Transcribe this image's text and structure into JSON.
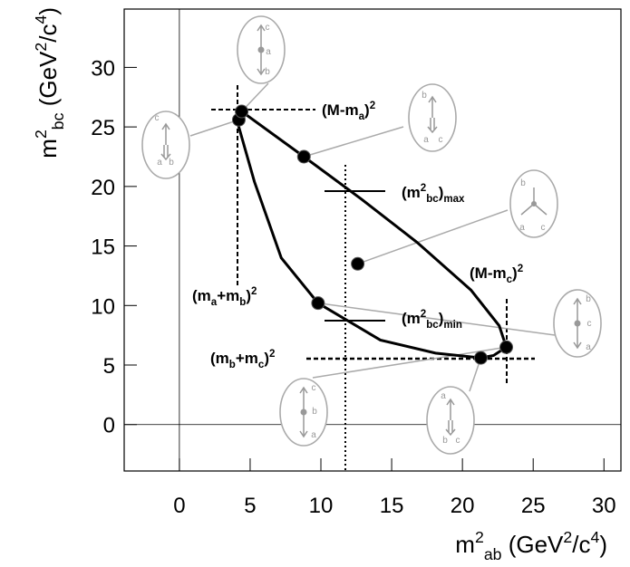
{
  "chart_data": {
    "type": "scatter",
    "x_label": [
      "m",
      "2",
      "ab",
      " (GeV",
      "2",
      "/c",
      "4",
      ")"
    ],
    "y_label": [
      "m",
      "2",
      "bc",
      " (GeV",
      "2",
      "/c",
      "4",
      ")"
    ],
    "xlim": [
      -3.9,
      31.2
    ],
    "ylim": [
      -3.9,
      34.9
    ],
    "xticks": [
      0,
      5,
      10,
      15,
      20,
      25,
      30
    ],
    "yticks": [
      0,
      5,
      10,
      15,
      20,
      25,
      30
    ],
    "color": "#000000",
    "x": [
      4.2,
      4.4,
      8.8,
      12.6,
      9.8,
      21.3,
      23.1
    ],
    "values": [
      25.6,
      26.3,
      22.5,
      13.5,
      10.2,
      5.6,
      6.5
    ],
    "boundary": {
      "x": [
        4.4,
        8.8,
        12.9,
        16.8,
        20.6,
        22.6,
        23.1,
        22.2,
        21.3,
        18.1,
        14.2,
        9.8,
        7.2,
        5.3,
        4.2,
        4.1,
        4.4
      ],
      "values": [
        26.3,
        22.5,
        18.9,
        15.3,
        11.3,
        8.3,
        6.5,
        5.8,
        5.6,
        6.0,
        7.1,
        10.2,
        14.0,
        20.4,
        25.0,
        25.7,
        26.3
      ]
    },
    "annotations": [
      [
        "(M-m",
        "a",
        ")",
        "2"
      ],
      [
        "(m",
        "2",
        "bc",
        ")",
        "max"
      ],
      [
        "(M-m",
        "c",
        ")",
        "2"
      ],
      [
        "(m",
        "a",
        "+m",
        "b",
        ")",
        "2"
      ],
      [
        "(m",
        "2",
        "bc",
        ")",
        "min"
      ],
      [
        "(m",
        "b",
        "+m",
        "c",
        ")",
        "2"
      ]
    ],
    "icons": [
      [
        "c",
        "a",
        "b"
      ],
      [
        "c",
        "a",
        "b"
      ],
      [
        "b",
        "a",
        "c"
      ],
      [
        "b",
        "a",
        "c"
      ],
      [
        "b",
        "c",
        "a"
      ],
      [
        "a",
        "b",
        "c"
      ],
      [
        "c",
        "b",
        "a"
      ]
    ]
  }
}
